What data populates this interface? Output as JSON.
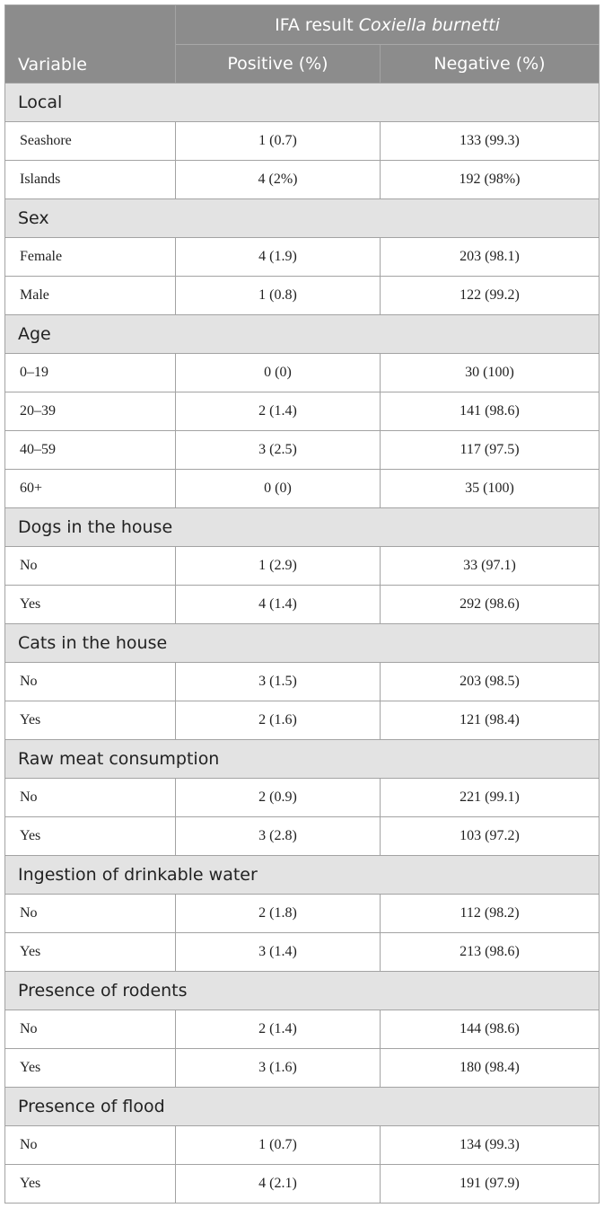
{
  "header": {
    "variable": "Variable",
    "group_prefix": "IFA result",
    "group_italic": "Coxiella burnetti",
    "positive": "Positive (%)",
    "negative": "Negative (%)"
  },
  "groups": [
    {
      "label": "Local",
      "rows": [
        [
          "Seashore",
          "1 (0.7)",
          "133 (99.3)"
        ],
        [
          "Islands",
          "4 (2%)",
          "192 (98%)"
        ]
      ]
    },
    {
      "label": "Sex",
      "rows": [
        [
          "Female",
          "4 (1.9)",
          "203 (98.1)"
        ],
        [
          "Male",
          "1 (0.8)",
          "122 (99.2)"
        ]
      ]
    },
    {
      "label": "Age",
      "rows": [
        [
          "0–19",
          "0 (0)",
          "30 (100)"
        ],
        [
          "20–39",
          "2 (1.4)",
          "141 (98.6)"
        ],
        [
          "40–59",
          "3 (2.5)",
          "117 (97.5)"
        ],
        [
          "60+",
          "0 (0)",
          "35 (100)"
        ]
      ]
    },
    {
      "label": "Dogs in the house",
      "rows": [
        [
          "No",
          "1 (2.9)",
          "33 (97.1)"
        ],
        [
          "Yes",
          "4 (1.4)",
          "292 (98.6)"
        ]
      ]
    },
    {
      "label": "Cats in the house",
      "rows": [
        [
          "No",
          "3 (1.5)",
          "203 (98.5)"
        ],
        [
          "Yes",
          "2 (1.6)",
          "121 (98.4)"
        ]
      ]
    },
    {
      "label": "Raw meat consumption",
      "rows": [
        [
          "No",
          "2 (0.9)",
          "221 (99.1)"
        ],
        [
          "Yes",
          "3 (2.8)",
          "103 (97.2)"
        ]
      ]
    },
    {
      "label": "Ingestion of drinkable water",
      "rows": [
        [
          "No",
          "2 (1.8)",
          "112 (98.2)"
        ],
        [
          "Yes",
          "3 (1.4)",
          "213 (98.6)"
        ]
      ]
    },
    {
      "label": "Presence of rodents",
      "rows": [
        [
          "No",
          "2 (1.4)",
          "144 (98.6)"
        ],
        [
          "Yes",
          "3 (1.6)",
          "180 (98.4)"
        ]
      ]
    },
    {
      "label": "Presence of flood",
      "rows": [
        [
          "No",
          "1 (0.7)",
          "134 (99.3)"
        ],
        [
          "Yes",
          "4 (2.1)",
          "191 (97.9)"
        ]
      ]
    }
  ]
}
